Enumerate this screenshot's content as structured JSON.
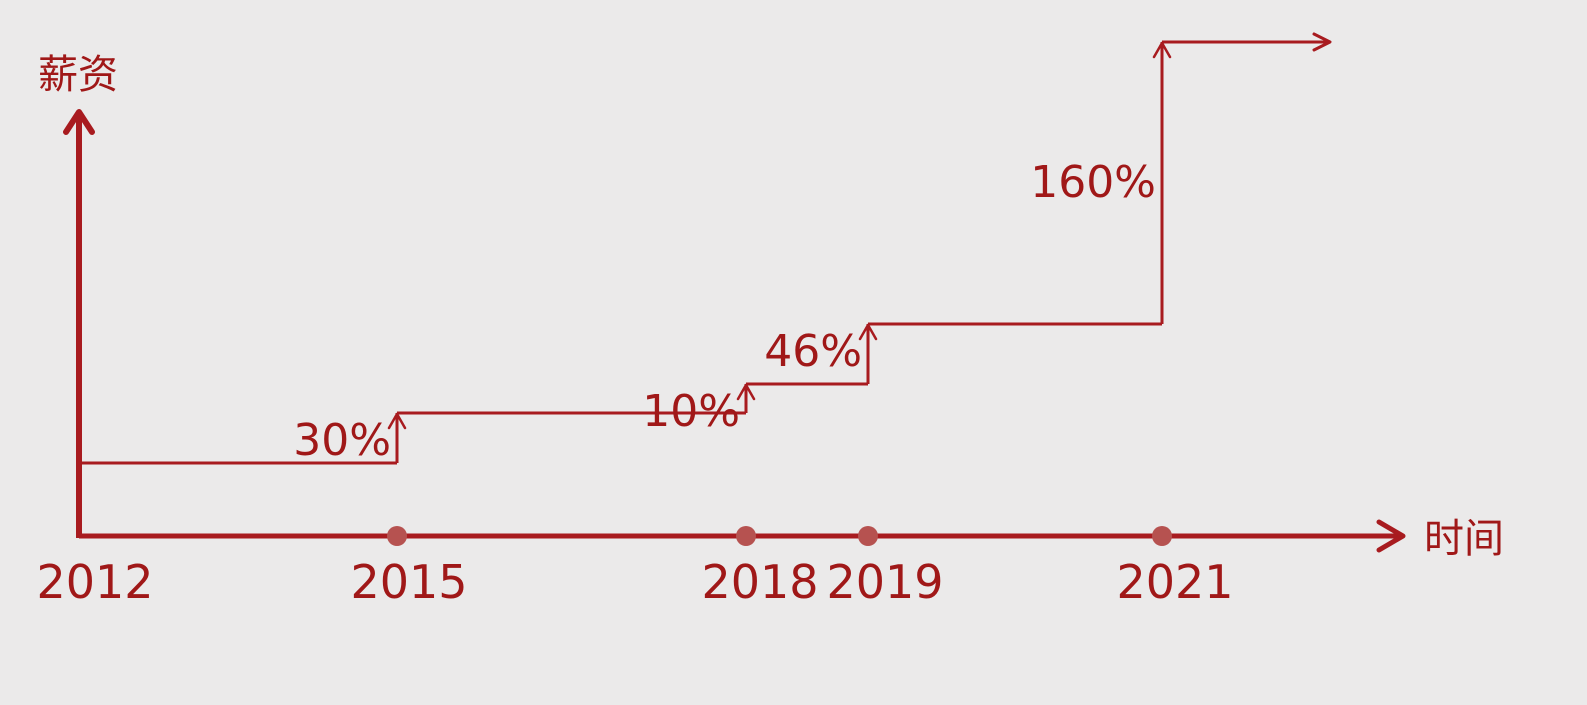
{
  "chart_data": {
    "type": "line",
    "step": true,
    "xlabel": "时间",
    "ylabel": "薪资",
    "x": [
      2012,
      2015,
      2018,
      2019,
      2021
    ],
    "tick_labels": [
      "2012",
      "2015",
      "2018",
      "2019",
      "2021"
    ],
    "increases": [
      {
        "year": 2015,
        "label": "30%"
      },
      {
        "year": 2018,
        "label": "10%"
      },
      {
        "year": 2019,
        "label": "46%"
      },
      {
        "year": 2021,
        "label": "160%"
      }
    ],
    "grid": false,
    "legend": "none",
    "colors": {
      "line": "#a81b1f",
      "text": "#a01818",
      "marker": "#b65250",
      "background": "#ebeaea"
    }
  }
}
